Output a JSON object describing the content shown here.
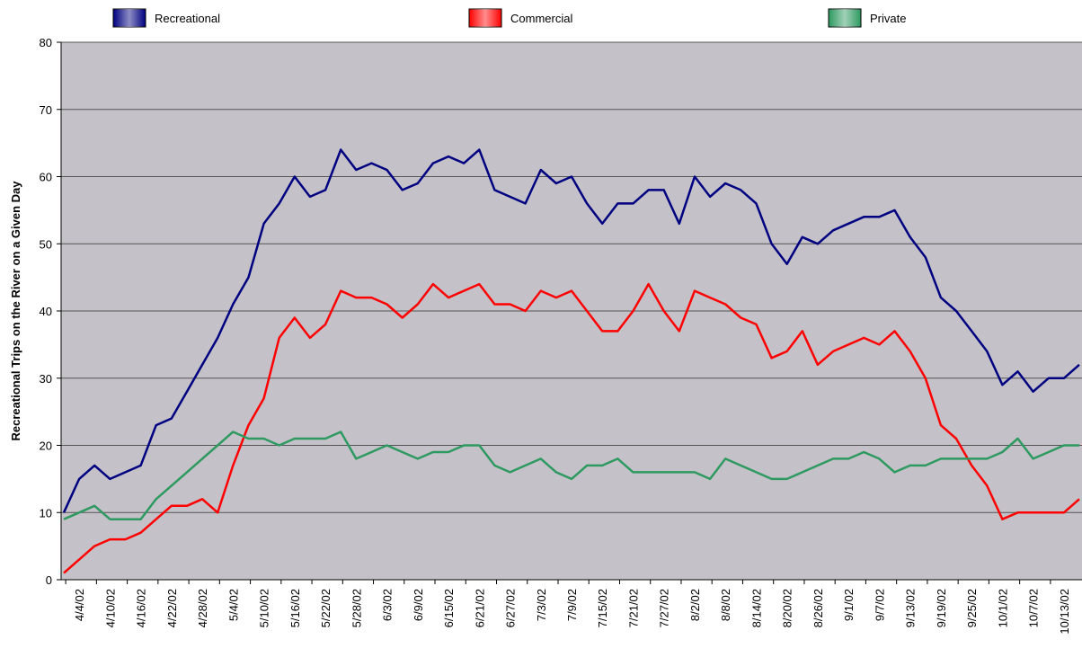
{
  "chart_data": {
    "type": "line",
    "y_label": "Recreational Trips on the River on a Given Day",
    "legend": "top",
    "grid": true,
    "ylim": [
      0,
      80
    ],
    "yticks": [
      0,
      10,
      20,
      30,
      40,
      50,
      60,
      70,
      80
    ],
    "categories": [
      null,
      "4/4/02",
      null,
      "4/10/02",
      null,
      "4/16/02",
      null,
      "4/22/02",
      null,
      "4/28/02",
      null,
      "5/4/02",
      null,
      "5/10/02",
      null,
      "5/16/02",
      null,
      "5/22/02",
      null,
      "5/28/02",
      null,
      "6/3/02",
      null,
      "6/9/02",
      null,
      "6/15/02",
      null,
      "6/21/02",
      null,
      "6/27/02",
      null,
      "7/3/02",
      null,
      "7/9/02",
      null,
      "7/15/02",
      null,
      "7/21/02",
      null,
      "7/27/02",
      null,
      "8/2/02",
      null,
      "8/8/02",
      null,
      "8/14/02",
      null,
      "8/20/02",
      null,
      "8/26/02",
      null,
      "9/1/02",
      null,
      "9/7/02",
      null,
      "9/13/02",
      null,
      "9/19/02",
      null,
      "9/25/02",
      null,
      "10/1/02",
      null,
      "10/7/02",
      null,
      "10/13/02",
      null
    ],
    "series": [
      {
        "name": "Recreational",
        "color": "#000080",
        "values": [
          10,
          15,
          17,
          15,
          16,
          17,
          23,
          24,
          28,
          32,
          36,
          41,
          45,
          53,
          56,
          60,
          57,
          58,
          64,
          61,
          62,
          61,
          58,
          59,
          62,
          63,
          62,
          64,
          58,
          57,
          56,
          61,
          59,
          60,
          56,
          53,
          56,
          56,
          58,
          58,
          53,
          60,
          57,
          59,
          58,
          56,
          50,
          47,
          51,
          50,
          52,
          53,
          54,
          54,
          55,
          51,
          48,
          42,
          40,
          37,
          34,
          29,
          31,
          28,
          30,
          30,
          32
        ]
      },
      {
        "name": "Commercial",
        "color": "#ff0000",
        "values": [
          1,
          3,
          5,
          6,
          6,
          7,
          9,
          11,
          11,
          12,
          10,
          17,
          23,
          27,
          36,
          39,
          36,
          38,
          43,
          42,
          42,
          41,
          39,
          41,
          44,
          42,
          43,
          44,
          41,
          41,
          40,
          43,
          42,
          43,
          40,
          37,
          37,
          40,
          44,
          40,
          37,
          43,
          42,
          41,
          39,
          38,
          33,
          34,
          37,
          32,
          34,
          35,
          36,
          35,
          37,
          34,
          30,
          23,
          21,
          17,
          14,
          9,
          10,
          10,
          10,
          10,
          12
        ]
      },
      {
        "name": "Private",
        "color": "#2e9960",
        "values": [
          9,
          10,
          11,
          9,
          9,
          9,
          12,
          14,
          16,
          18,
          20,
          22,
          21,
          21,
          20,
          21,
          21,
          21,
          22,
          18,
          19,
          20,
          19,
          18,
          19,
          19,
          20,
          20,
          17,
          16,
          17,
          18,
          16,
          15,
          17,
          17,
          18,
          16,
          16,
          16,
          16,
          16,
          15,
          18,
          17,
          16,
          15,
          15,
          16,
          17,
          18,
          18,
          19,
          18,
          16,
          17,
          17,
          18,
          18,
          18,
          18,
          19,
          21,
          18,
          19,
          20,
          20
        ]
      }
    ]
  }
}
